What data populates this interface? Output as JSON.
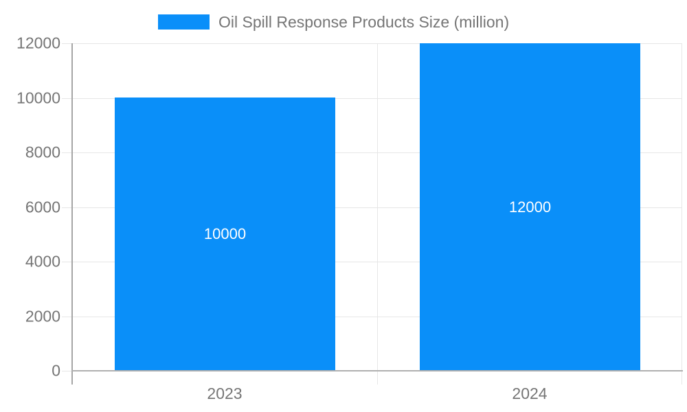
{
  "chart_data": {
    "type": "bar",
    "title": "",
    "xlabel": "",
    "ylabel": "",
    "categories": [
      "2023",
      "2024"
    ],
    "series": [
      {
        "name": "Oil Spill Response Products Size (million)",
        "values": [
          10000,
          12000
        ]
      }
    ],
    "bar_value_labels": [
      "10000",
      "12000"
    ],
    "ylim": [
      0,
      12000
    ],
    "yticks": [
      0,
      2000,
      4000,
      6000,
      8000,
      10000,
      12000
    ],
    "ytick_labels": [
      "0",
      "2000",
      "4000",
      "6000",
      "8000",
      "10000",
      "12000"
    ],
    "grid": true,
    "legend_position": "top"
  },
  "legend": {
    "label": "Oil Spill Response Products Size (million)"
  },
  "colors": {
    "bar": "#0a8ff9",
    "bar_label_text": "#ffffff",
    "axis_text": "#757575",
    "gridline": "#e6e6e6",
    "y_axis_line": "#a5a5a5",
    "x_axis_line": "#b0b0b0",
    "background": "#ffffff"
  }
}
